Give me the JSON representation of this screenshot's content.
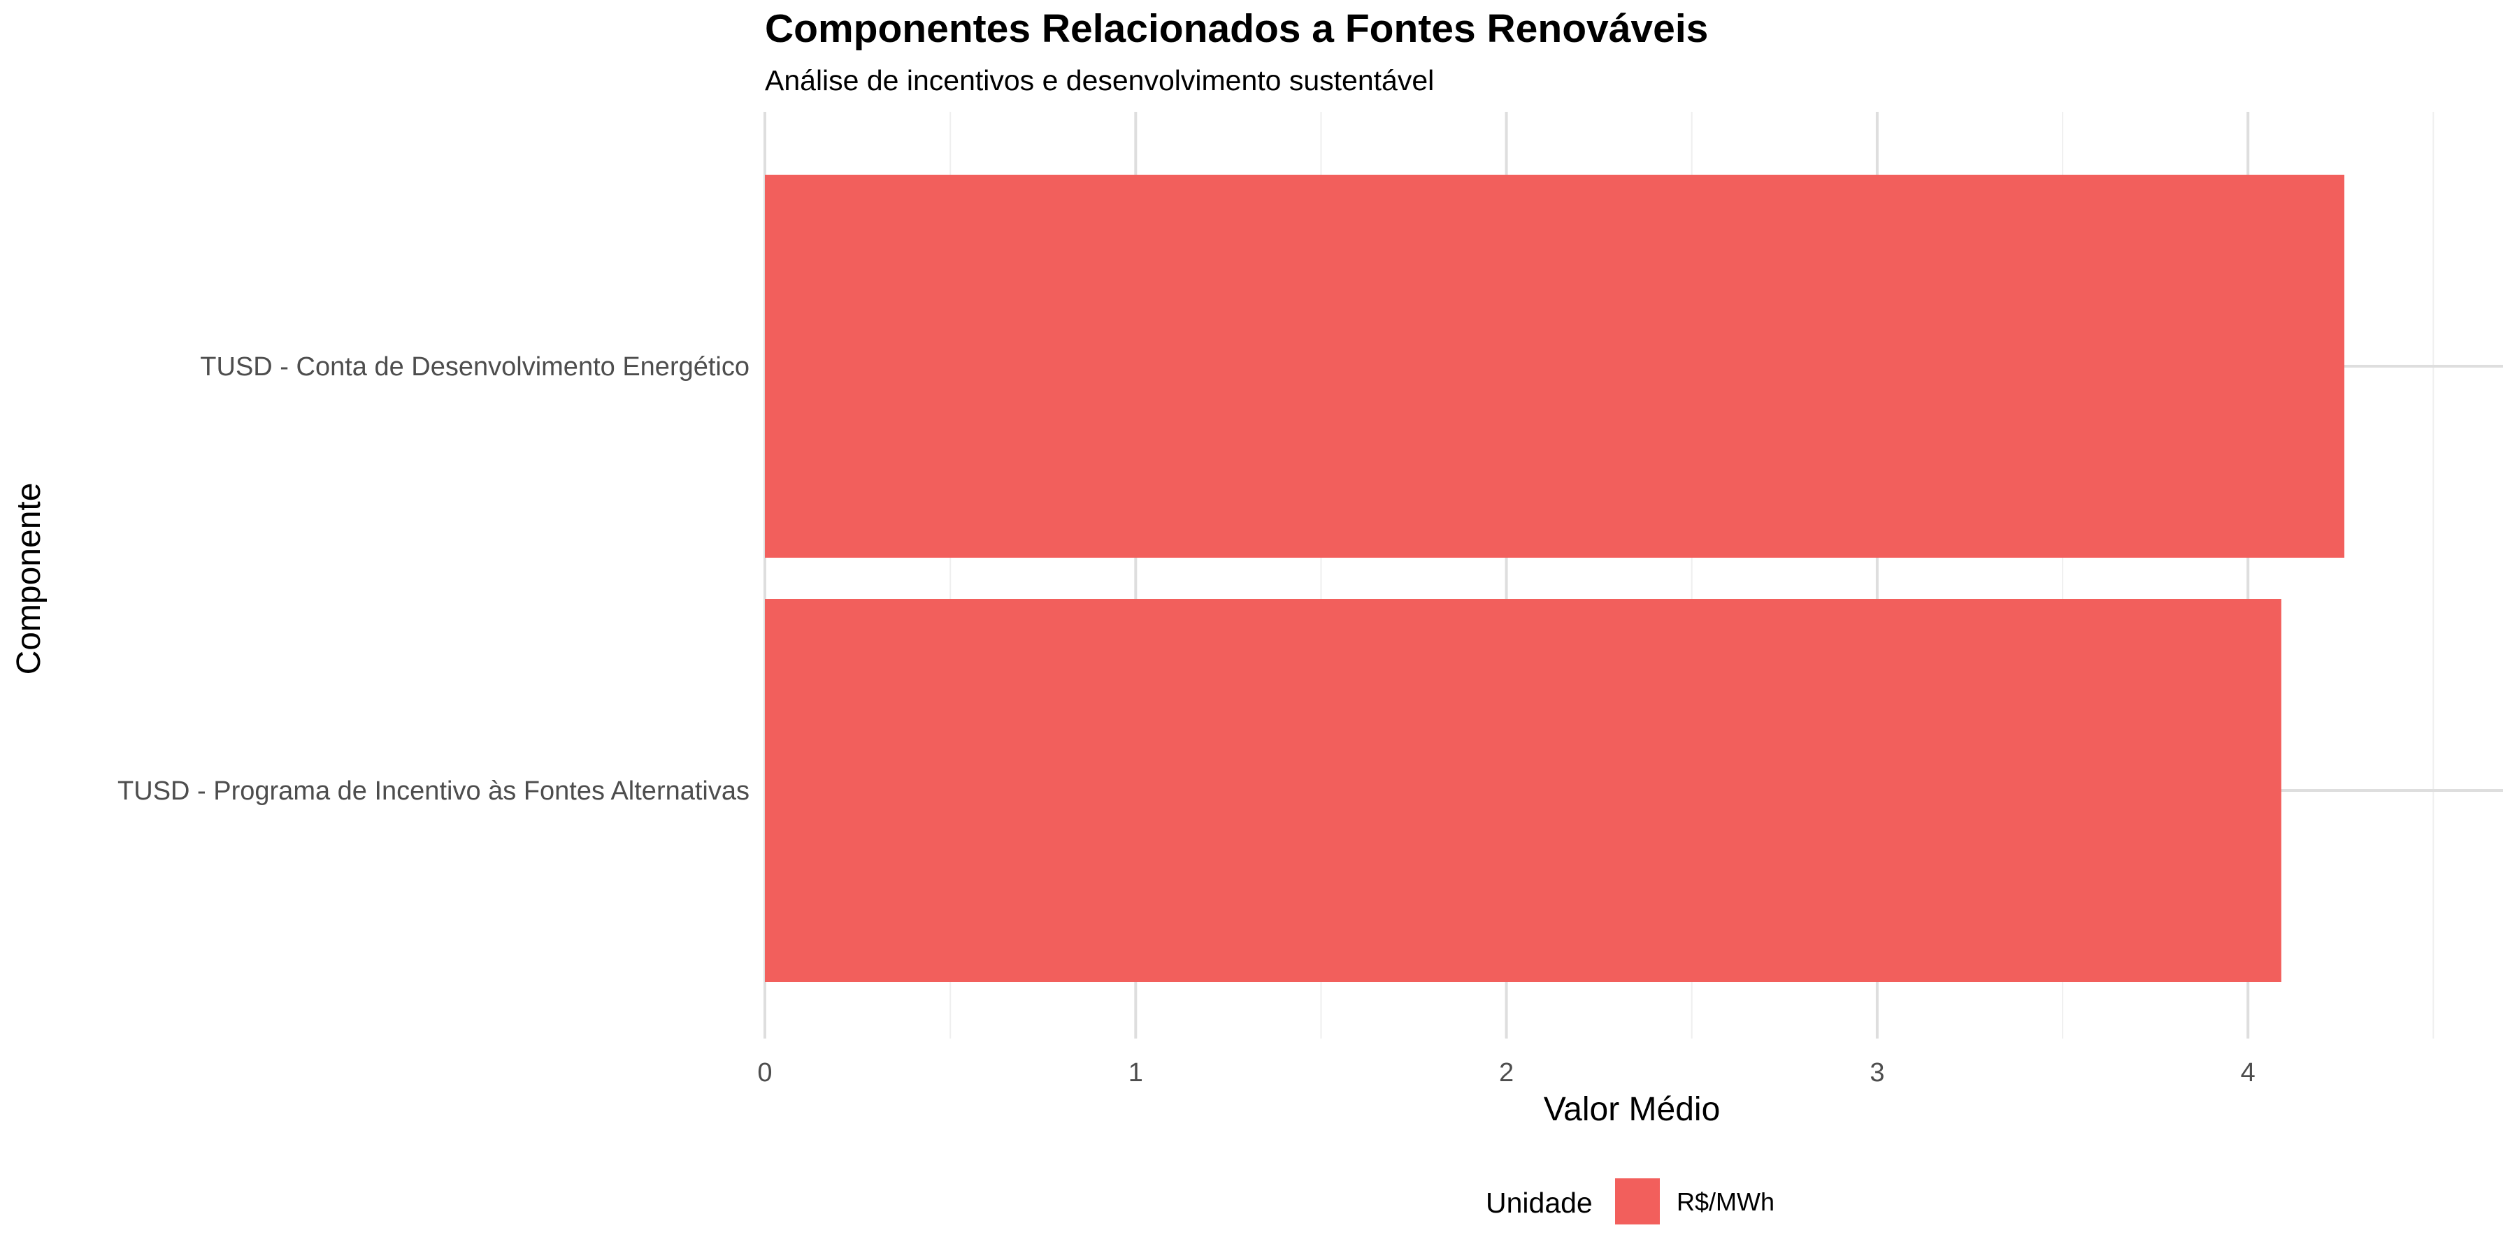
{
  "chart_data": {
    "type": "bar",
    "orientation": "horizontal",
    "title": "Componentes Relacionados a Fontes Renováveis",
    "subtitle": "Análise de incentivos e desenvolvimento sustentável",
    "xlabel": "Valor Médio",
    "ylabel": "Componente",
    "categories": [
      "TUSD - Conta de Desenvolvimento Energético",
      "TUSD - Programa de Incentivo às Fontes Alternativas"
    ],
    "series": [
      {
        "name": "R$/MWh",
        "values": [
          4.26,
          4.09
        ],
        "color": "#F25F5C"
      }
    ],
    "xlim": [
      0,
      4.5
    ],
    "xticks": [
      0,
      1,
      2,
      3,
      4
    ],
    "xtick_labels": [
      "0",
      "1",
      "2",
      "3",
      "4"
    ],
    "grid": true,
    "legend": {
      "position": "bottom",
      "title": "Unidade",
      "entries": [
        "R$/MWh"
      ]
    },
    "colors": {
      "bar": "#F25F5C",
      "grid_major": "#dedede",
      "grid_minor": "#efefef",
      "background": "#ffffff"
    }
  }
}
